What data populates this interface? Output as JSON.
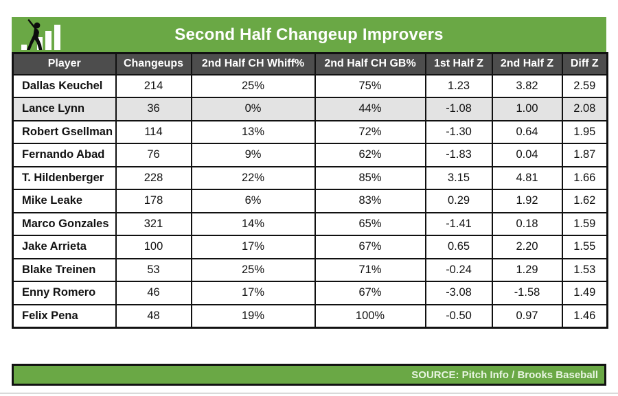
{
  "colors": {
    "brand_green": "#6aa845",
    "header_bg": "#4d4d4d",
    "header_text": "#ffffff",
    "row_highlight": "#e3e3e3",
    "border": "#111111",
    "source_text": "#e9f5e2"
  },
  "header": {
    "title": "Second Half Changeup Improvers",
    "logo": "batter-bar-chart-logo"
  },
  "table": {
    "columns": [
      "Player",
      "Changeups",
      "2nd Half CH Whiff%",
      "2nd Half CH GB%",
      "1st Half Z",
      "2nd Half Z",
      "Diff Z"
    ],
    "column_keys": [
      "player",
      "changeups",
      "whiff_pct",
      "gb_pct",
      "z_first_half",
      "z_second_half",
      "z_diff"
    ],
    "highlighted_player": "Lance Lynn",
    "rows": [
      {
        "player": "Dallas Keuchel",
        "changeups": "214",
        "whiff_pct": "25%",
        "gb_pct": "75%",
        "z_first_half": "1.23",
        "z_second_half": "3.82",
        "z_diff": "2.59"
      },
      {
        "player": "Lance Lynn",
        "changeups": "36",
        "whiff_pct": "0%",
        "gb_pct": "44%",
        "z_first_half": "-1.08",
        "z_second_half": "1.00",
        "z_diff": "2.08"
      },
      {
        "player": "Robert Gsellman",
        "changeups": "114",
        "whiff_pct": "13%",
        "gb_pct": "72%",
        "z_first_half": "-1.30",
        "z_second_half": "0.64",
        "z_diff": "1.95"
      },
      {
        "player": "Fernando Abad",
        "changeups": "76",
        "whiff_pct": "9%",
        "gb_pct": "62%",
        "z_first_half": "-1.83",
        "z_second_half": "0.04",
        "z_diff": "1.87"
      },
      {
        "player": "T. Hildenberger",
        "changeups": "228",
        "whiff_pct": "22%",
        "gb_pct": "85%",
        "z_first_half": "3.15",
        "z_second_half": "4.81",
        "z_diff": "1.66"
      },
      {
        "player": "Mike Leake",
        "changeups": "178",
        "whiff_pct": "6%",
        "gb_pct": "83%",
        "z_first_half": "0.29",
        "z_second_half": "1.92",
        "z_diff": "1.62"
      },
      {
        "player": "Marco Gonzales",
        "changeups": "321",
        "whiff_pct": "14%",
        "gb_pct": "65%",
        "z_first_half": "-1.41",
        "z_second_half": "0.18",
        "z_diff": "1.59"
      },
      {
        "player": "Jake Arrieta",
        "changeups": "100",
        "whiff_pct": "17%",
        "gb_pct": "67%",
        "z_first_half": "0.65",
        "z_second_half": "2.20",
        "z_diff": "1.55"
      },
      {
        "player": "Blake Treinen",
        "changeups": "53",
        "whiff_pct": "25%",
        "gb_pct": "71%",
        "z_first_half": "-0.24",
        "z_second_half": "1.29",
        "z_diff": "1.53"
      },
      {
        "player": "Enny Romero",
        "changeups": "46",
        "whiff_pct": "17%",
        "gb_pct": "67%",
        "z_first_half": "-3.08",
        "z_second_half": "-1.58",
        "z_diff": "1.49"
      },
      {
        "player": "Felix Pena",
        "changeups": "48",
        "whiff_pct": "19%",
        "gb_pct": "100%",
        "z_first_half": "-0.50",
        "z_second_half": "0.97",
        "z_diff": "1.46"
      }
    ]
  },
  "footer": {
    "source": "SOURCE: Pitch Info / Brooks Baseball"
  },
  "chart_data": {
    "type": "table",
    "title": "Second Half Changeup Improvers",
    "columns": [
      "Player",
      "Changeups",
      "2nd Half CH Whiff%",
      "2nd Half CH GB%",
      "1st Half Z",
      "2nd Half Z",
      "Diff Z"
    ],
    "rows": [
      [
        "Dallas Keuchel",
        214,
        "25%",
        "75%",
        1.23,
        3.82,
        2.59
      ],
      [
        "Lance Lynn",
        36,
        "0%",
        "44%",
        -1.08,
        1.0,
        2.08
      ],
      [
        "Robert Gsellman",
        114,
        "13%",
        "72%",
        -1.3,
        0.64,
        1.95
      ],
      [
        "Fernando Abad",
        76,
        "9%",
        "62%",
        -1.83,
        0.04,
        1.87
      ],
      [
        "T. Hildenberger",
        228,
        "22%",
        "85%",
        3.15,
        4.81,
        1.66
      ],
      [
        "Mike Leake",
        178,
        "6%",
        "83%",
        0.29,
        1.92,
        1.62
      ],
      [
        "Marco Gonzales",
        321,
        "14%",
        "65%",
        -1.41,
        0.18,
        1.59
      ],
      [
        "Jake Arrieta",
        100,
        "17%",
        "67%",
        0.65,
        2.2,
        1.55
      ],
      [
        "Blake Treinen",
        53,
        "25%",
        "71%",
        -0.24,
        1.29,
        1.53
      ],
      [
        "Enny Romero",
        46,
        "17%",
        "67%",
        -3.08,
        -1.58,
        1.49
      ],
      [
        "Felix Pena",
        48,
        "19%",
        "100%",
        -0.5,
        0.97,
        1.46
      ]
    ],
    "source": "SOURCE: Pitch Info / Brooks Baseball",
    "highlighted_row": "Lance Lynn"
  }
}
